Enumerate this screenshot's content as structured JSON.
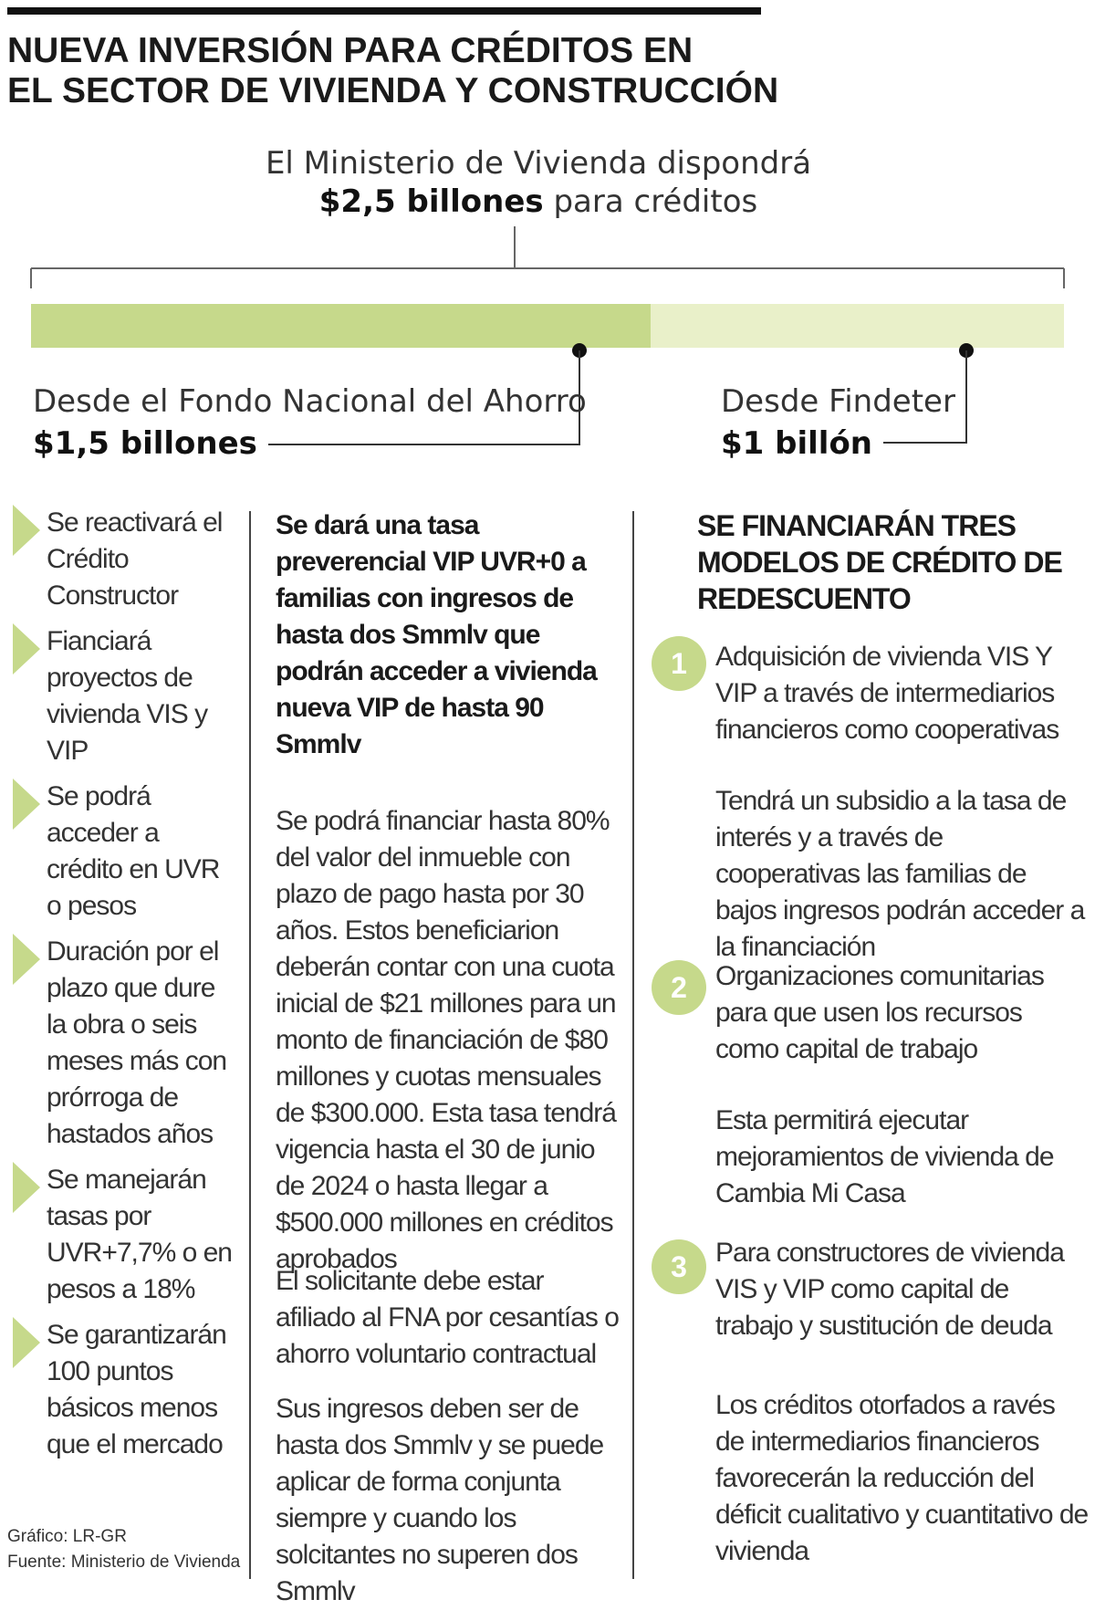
{
  "header": {
    "title_line1": "NUEVA INVERSIÓN PARA CRÉDITOS EN",
    "title_line2": "EL SECTOR DE VIVIENDA Y CONSTRUCCIÓN"
  },
  "intro": {
    "line1": "El Ministerio de Vivienda dispondrá",
    "amount": "$2,5 billones",
    "rest": "para créditos"
  },
  "allocation": {
    "total": 2.5,
    "unit": "billones",
    "fna_share": 0.6,
    "findeter_share": 0.4,
    "fna_color": "#c6d98b",
    "findeter_color": "#e9f0c9",
    "fna": {
      "label": "Desde el Fondo Nacional del Ahorro",
      "amount": "$1,5 billones"
    },
    "findeter": {
      "label": "Desde Findeter",
      "amount": "$1 billón"
    }
  },
  "left_column": {
    "bullet_color": "#c6d98b",
    "items": [
      "Se reactivará el Crédito Constructor",
      "Fianciará proyectos de vivienda VIS y VIP",
      "Se podrá acceder a crédito en UVR o pesos",
      "Duración por el plazo que dure la obra o seis meses más con prórroga de hastados años",
      "Se manejarán tasas por UVR+7,7% o en pesos a 18%",
      "Se garantizarán 100 puntos básicos menos que el mercado"
    ]
  },
  "middle_column": {
    "title": "Se dará una tasa preverencial VIP UVR+0 a familias con ingresos de hasta dos Smmlv que podrán acceder a vivienda nueva VIP de hasta 90 Smmlv",
    "paragraphs": [
      "Se podrá financiar hasta 80% del valor del inmueble con plazo de pago hasta por 30 años. Estos beneficiarion deberán contar con una cuota inicial de $21 millones para un monto de financiación de $80 millones y cuotas mensuales de $300.000. Esta tasa tendrá vigencia hasta el 30 de junio de 2024 o hasta llegar a $500.000 millones en créditos aprobados",
      "El solicitante debe estar afiliado al FNA por cesantías o ahorro voluntario contractual",
      "Sus ingresos deben ser de hasta dos Smmlv y se puede aplicar de forma conjunta siempre y cuando los solcitantes no superen dos Smmlv"
    ]
  },
  "right_column": {
    "title": "SE FINANCIARÁN TRES MODELOS DE CRÉDITO DE REDESCUENTO",
    "models": [
      {
        "number": "1",
        "text": "Adquisición de vivienda VIS Y VIP a través de intermediarios financieros como cooperativas",
        "note": "Tendrá un subsidio a la tasa de interés y a través de cooperativas las familias de bajos ingresos podrán acceder a la financiación"
      },
      {
        "number": "2",
        "text": "Organizaciones comunitarias para que usen los recursos como capital de trabajo",
        "note": "Esta permitirá ejecutar mejoramientos de vivienda de Cambia Mi Casa"
      },
      {
        "number": "3",
        "text": "Para constructores de vivienda VIS y VIP como capital de trabajo y sustitución de deuda",
        "note": "Los créditos otorfados a ravés de intermediarios financieros favorecerán la reducción del déficit cualitativo y cuantitativo de vivienda"
      }
    ]
  },
  "credits": {
    "graphic": "Gráfico: LR-GR",
    "source": "Fuente: Ministerio de Vivienda"
  }
}
